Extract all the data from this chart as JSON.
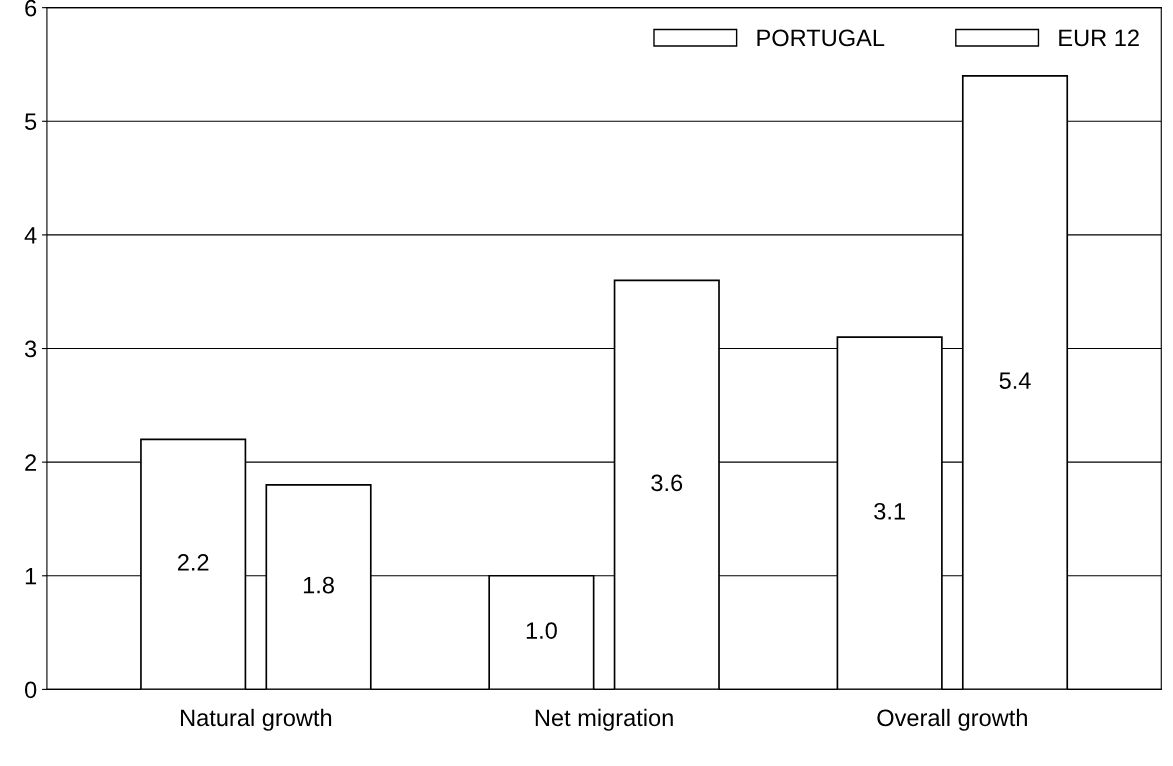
{
  "chart_data": {
    "type": "bar",
    "categories": [
      "Natural growth",
      "Net migration",
      "Overall growth"
    ],
    "series": [
      {
        "name": "PORTUGAL",
        "color": "#ffffff",
        "values": [
          2.2,
          1.0,
          3.1
        ],
        "value_labels": [
          "2.2",
          "1.0",
          "3.1"
        ]
      },
      {
        "name": "EUR 12",
        "color": "#ffffff",
        "values": [
          1.8,
          3.6,
          5.4
        ],
        "value_labels": [
          "1.8",
          "3.6",
          "5.4"
        ]
      }
    ],
    "ylim": [
      0,
      6
    ],
    "yticks": [
      0,
      1,
      2,
      3,
      4,
      5,
      6
    ],
    "grid": "y",
    "legend": "top right"
  }
}
